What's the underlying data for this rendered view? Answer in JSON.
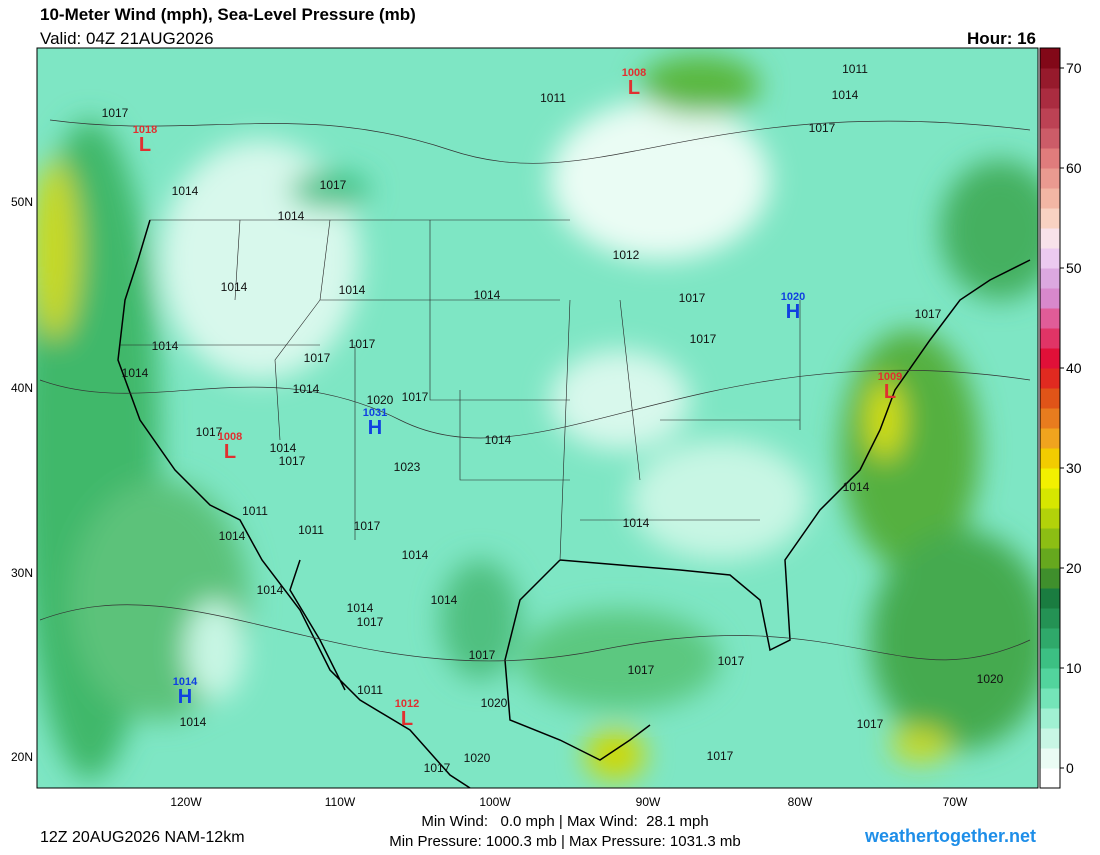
{
  "title": "10-Meter Wind (mph), Sea-Level Pressure (mb)",
  "valid": "Valid: 04Z 21AUG2026",
  "hour": "Hour: 16",
  "map": {
    "lat_labels": [
      "50N",
      "40N",
      "30N",
      "20N"
    ],
    "lon_labels": [
      "120W",
      "110W",
      "100W",
      "90W",
      "80W",
      "70W"
    ],
    "centers": [
      {
        "letter": "L",
        "pressure": "1018"
      },
      {
        "letter": "L",
        "pressure": "1008"
      },
      {
        "letter": "L",
        "pressure": "1008"
      },
      {
        "letter": "H",
        "pressure": "1031"
      },
      {
        "letter": "H",
        "pressure": "1020"
      },
      {
        "letter": "L",
        "pressure": "1009"
      },
      {
        "letter": "H",
        "pressure": "1014"
      },
      {
        "letter": "L",
        "pressure": "1012"
      }
    ],
    "isobar_labels": [
      "1017",
      "1014",
      "1014",
      "1017",
      "1011",
      "1011",
      "1014",
      "1017",
      "1014",
      "1014",
      "1014",
      "1014",
      "1017",
      "1017",
      "1014",
      "1020",
      "1017",
      "1017",
      "1014",
      "1017",
      "1014",
      "1023",
      "1014",
      "1017",
      "1017",
      "1017",
      "1012",
      "1014",
      "1014",
      "1011",
      "1014",
      "1011",
      "1017",
      "1014",
      "1014",
      "1014",
      "1017",
      "1014",
      "1017",
      "1020",
      "1011",
      "1017",
      "1017",
      "1020",
      "1017",
      "1017",
      "1014",
      "1020",
      "1017"
    ]
  },
  "colorbar": {
    "clim": [
      -2,
      72
    ],
    "ticks": [
      0,
      10,
      20,
      30,
      40,
      50,
      60,
      70
    ],
    "colors": [
      "#ffffff",
      "#eafcf4",
      "#c8f6e4",
      "#a0f0d2",
      "#74e4b8",
      "#52d49d",
      "#3cc083",
      "#2fa96a",
      "#249254",
      "#1a7c40",
      "#3f8f2c",
      "#66a81e",
      "#8cbe14",
      "#b2d20a",
      "#d6e600",
      "#f2f000",
      "#f2cc00",
      "#f0a41e",
      "#e87c1e",
      "#e05418",
      "#e02a20",
      "#e01038",
      "#e03466",
      "#e05c98",
      "#d888cc",
      "#dca8e0",
      "#eccaf0",
      "#f8e2ea",
      "#f8d2c2",
      "#f2b6a4",
      "#ea9a90",
      "#e07c7c",
      "#cc5c68",
      "#bc4254",
      "#aa2c40",
      "#961a2c",
      "#820818"
    ]
  },
  "footer": {
    "run": "12Z 20AUG2026 NAM-12km",
    "wind": "Min Wind:   0.0 mph | Max Wind:  28.1 mph",
    "pressure": "Min Pressure: 1000.3 mb | Max Pressure: 1031.3 mb",
    "site": "weathertogether.net"
  }
}
